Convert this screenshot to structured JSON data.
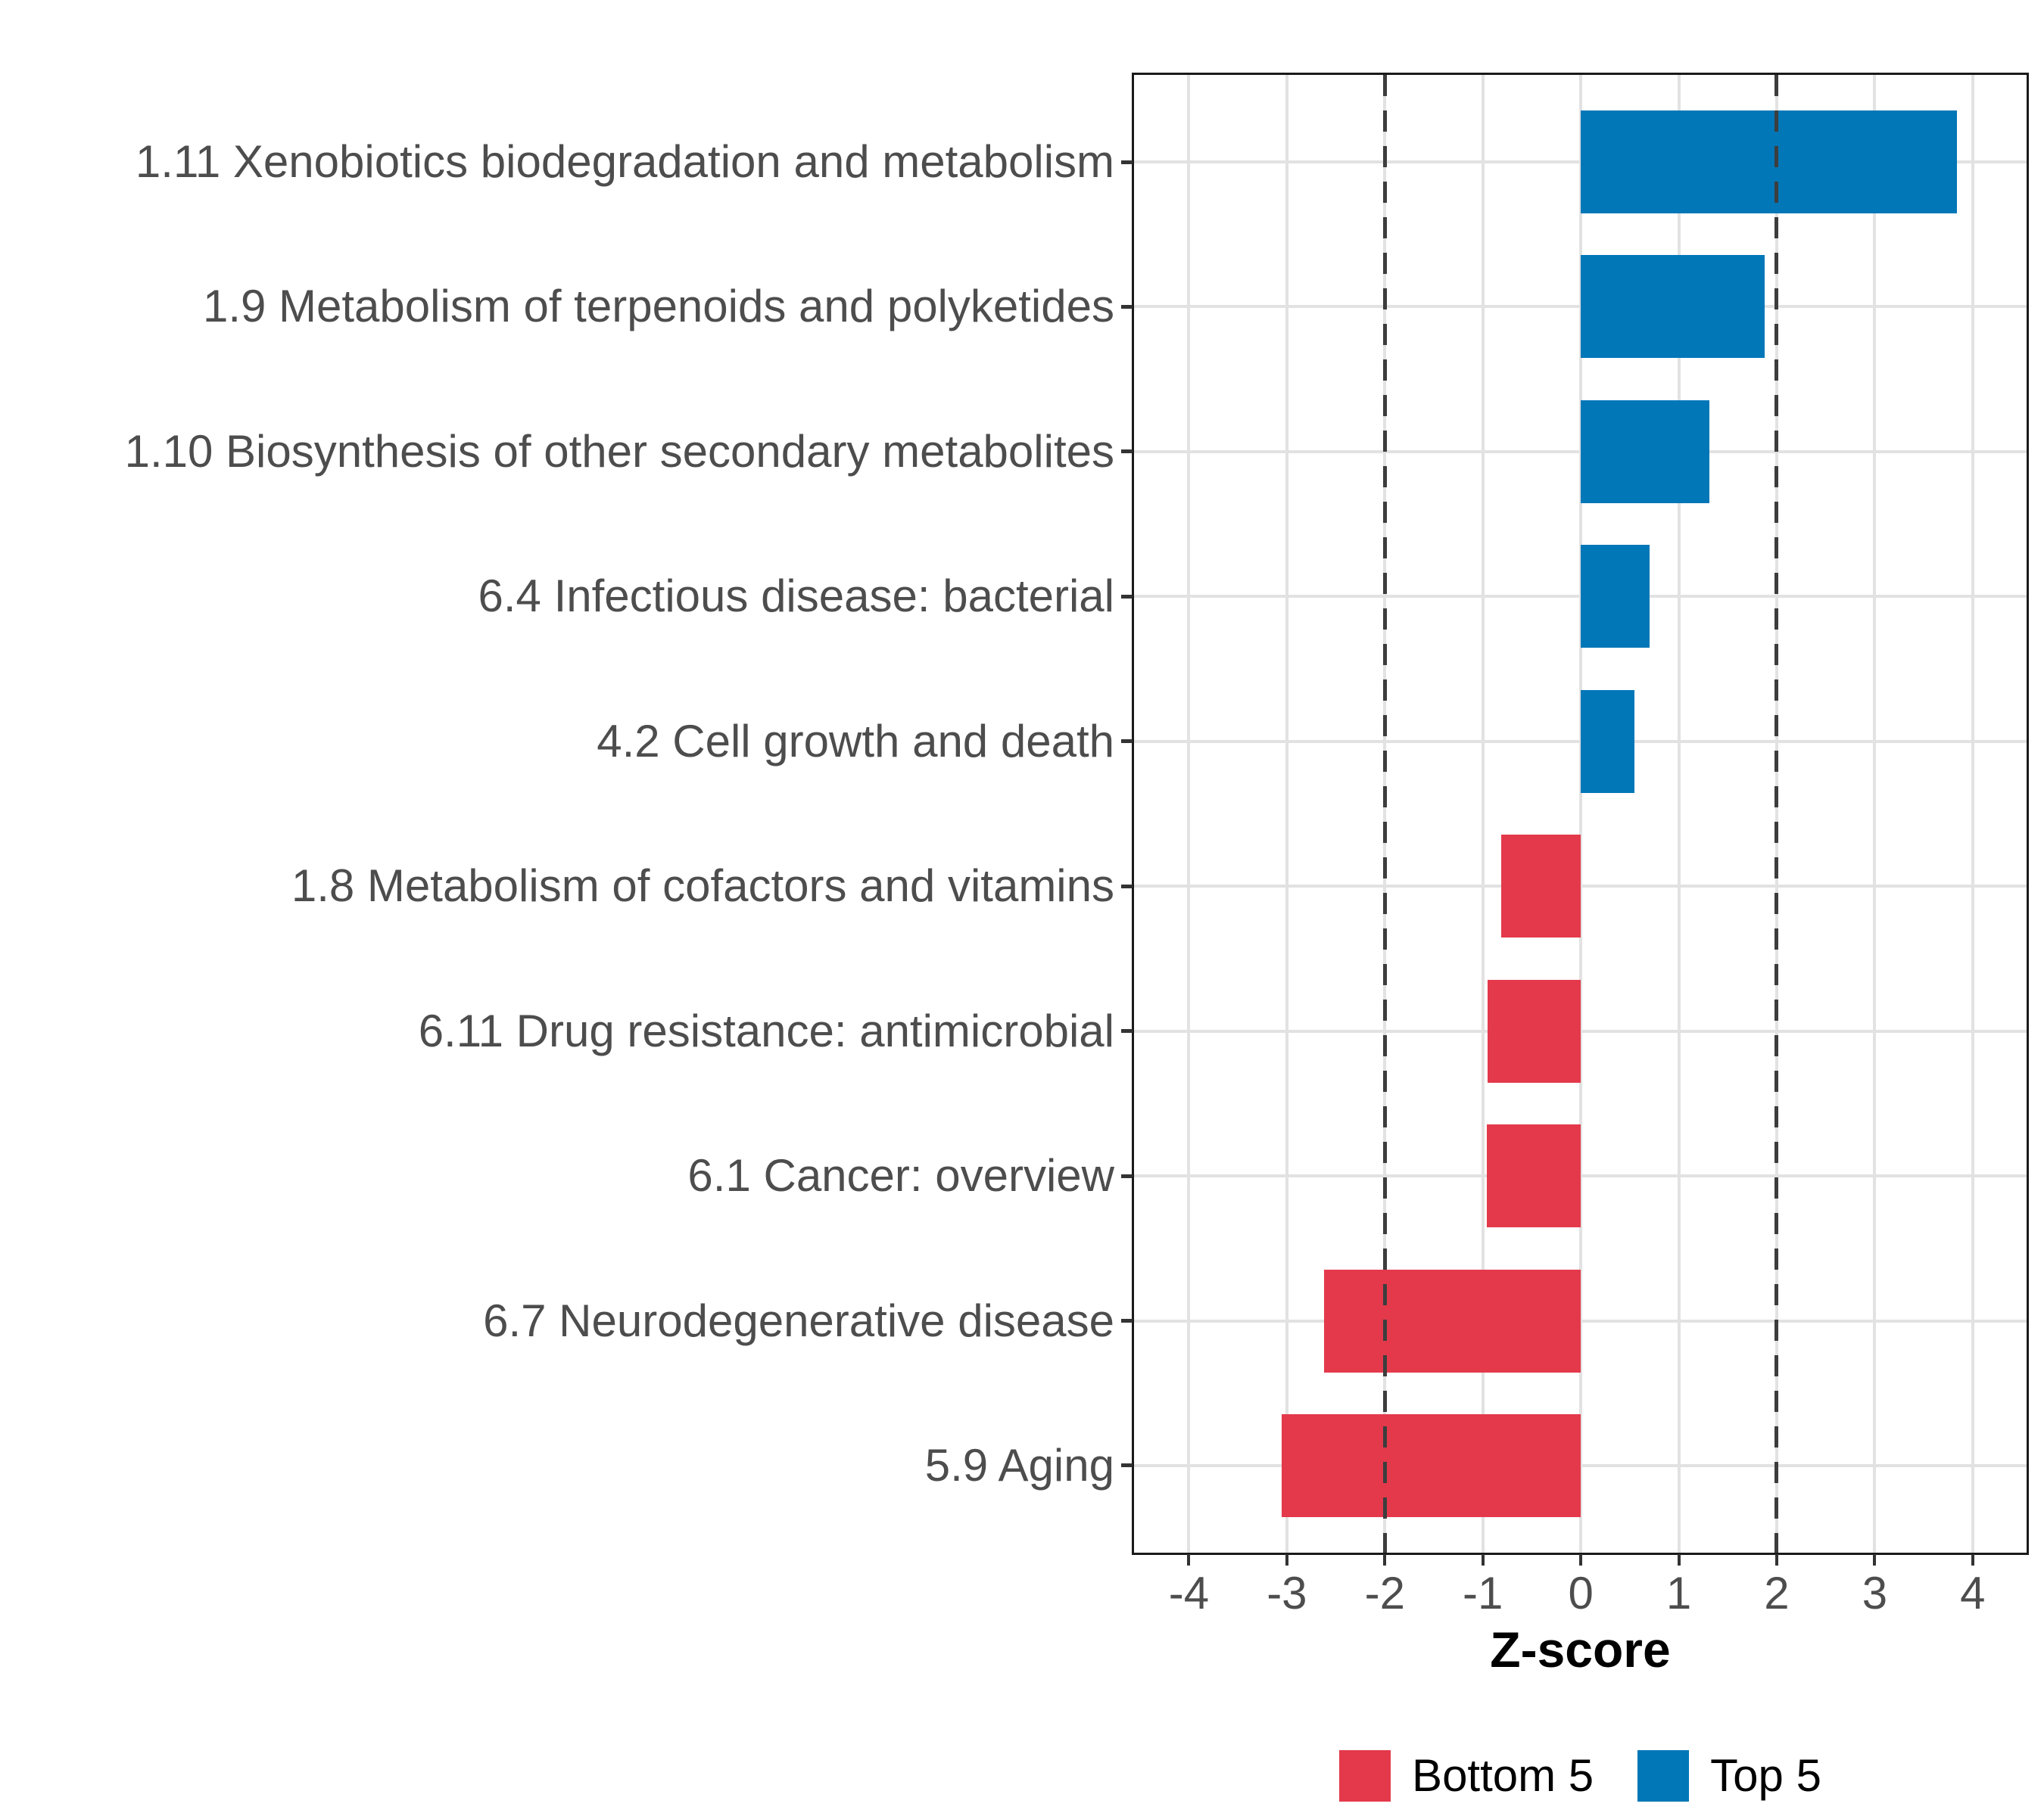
{
  "chart_data": {
    "type": "bar",
    "orientation": "horizontal",
    "title": "",
    "xlabel": "Z-score",
    "x_ticks": [
      -4,
      -3,
      -2,
      -1,
      0,
      1,
      2,
      3,
      4
    ],
    "xlim": [
      -4.56,
      4.55
    ],
    "reference_lines": [
      -2,
      2
    ],
    "grid": true,
    "legend_position": "bottom",
    "categories": [
      "1.11 Xenobiotics biodegradation and metabolism",
      "1.9 Metabolism of terpenoids and polyketides",
      "1.10 Biosynthesis of other secondary metabolites",
      "6.4 Infectious disease: bacterial",
      "4.2 Cell growth and death",
      "1.8 Metabolism of cofactors and vitamins",
      "6.11 Drug resistance: antimicrobial",
      "6.1 Cancer: overview",
      "6.7 Neurodegenerative disease",
      "5.9 Aging"
    ],
    "values": [
      3.84,
      1.88,
      1.31,
      0.7,
      0.55,
      -0.81,
      -0.95,
      -0.96,
      -2.62,
      -3.05
    ],
    "groups": [
      "Top 5",
      "Top 5",
      "Top 5",
      "Top 5",
      "Top 5",
      "Bottom 5",
      "Bottom 5",
      "Bottom 5",
      "Bottom 5",
      "Bottom 5"
    ],
    "legend": [
      {
        "label": "Bottom 5",
        "color": "#E4394B"
      },
      {
        "label": "Top 5",
        "color": "#0277B8"
      }
    ],
    "colors": {
      "grid": "#E2E2E2",
      "reference_line": "#3D3D3D",
      "axis_text": "#4D4D4D",
      "panel_border": "#1A1A1A"
    }
  }
}
